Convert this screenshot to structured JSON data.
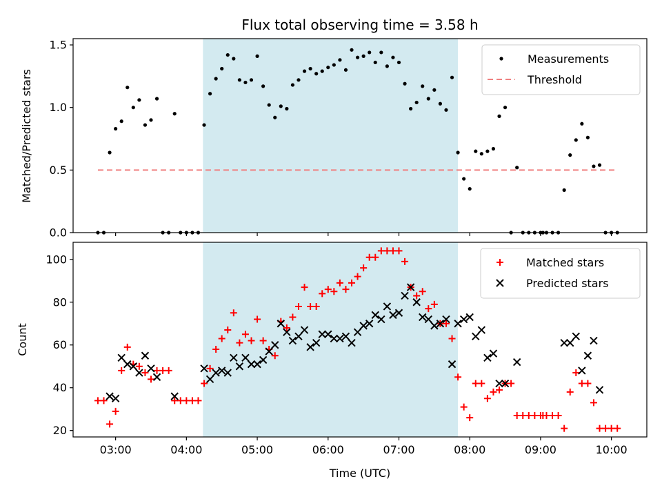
{
  "chart_data": [
    {
      "type": "scatter",
      "title": "Flux total observing time = 3.58 h",
      "xlabel": "",
      "ylabel": "Matched/Predicted stars",
      "ylim": [
        0,
        1.55
      ],
      "yticks": [
        0,
        0.5,
        1.0,
        1.5
      ],
      "ytick_labels": [
        "0.0",
        "0.5",
        "1.0",
        "1.5"
      ],
      "xlim": [
        "02:24",
        "10:30"
      ],
      "highlight_span": {
        "start": "04:14",
        "end": "07:50",
        "color": "#d3eaf0"
      },
      "legend": {
        "position": "top-right"
      },
      "series": [
        {
          "name": "Measurements",
          "kind": "scatter",
          "marker": "dot",
          "color": "#000000",
          "points": [
            [
              "02:45",
              0
            ],
            [
              "02:50",
              0
            ],
            [
              "02:55",
              0.64
            ],
            [
              "03:00",
              0.83
            ],
            [
              "03:05",
              0.89
            ],
            [
              "03:10",
              1.16
            ],
            [
              "03:15",
              1.0
            ],
            [
              "03:20",
              1.06
            ],
            [
              "03:25",
              0.86
            ],
            [
              "03:30",
              0.9
            ],
            [
              "03:35",
              1.07
            ],
            [
              "03:40",
              0
            ],
            [
              "03:45",
              0
            ],
            [
              "03:50",
              0.95
            ],
            [
              "03:55",
              0
            ],
            [
              "04:00",
              0
            ],
            [
              "04:05",
              0
            ],
            [
              "04:10",
              0
            ],
            [
              "04:15",
              0.86
            ],
            [
              "04:20",
              1.11
            ],
            [
              "04:25",
              1.23
            ],
            [
              "04:30",
              1.31
            ],
            [
              "04:35",
              1.42
            ],
            [
              "04:40",
              1.39
            ],
            [
              "04:45",
              1.22
            ],
            [
              "04:50",
              1.2
            ],
            [
              "04:55",
              1.22
            ],
            [
              "05:00",
              1.41
            ],
            [
              "05:05",
              1.17
            ],
            [
              "05:10",
              1.02
            ],
            [
              "05:15",
              0.92
            ],
            [
              "05:20",
              1.01
            ],
            [
              "05:25",
              0.99
            ],
            [
              "05:30",
              1.18
            ],
            [
              "05:35",
              1.22
            ],
            [
              "05:40",
              1.29
            ],
            [
              "05:45",
              1.31
            ],
            [
              "05:50",
              1.27
            ],
            [
              "05:55",
              1.29
            ],
            [
              "06:00",
              1.32
            ],
            [
              "06:05",
              1.34
            ],
            [
              "06:10",
              1.38
            ],
            [
              "06:15",
              1.3
            ],
            [
              "06:20",
              1.46
            ],
            [
              "06:25",
              1.4
            ],
            [
              "06:30",
              1.41
            ],
            [
              "06:35",
              1.44
            ],
            [
              "06:40",
              1.36
            ],
            [
              "06:45",
              1.44
            ],
            [
              "06:50",
              1.33
            ],
            [
              "06:55",
              1.4
            ],
            [
              "07:00",
              1.36
            ],
            [
              "07:05",
              1.19
            ],
            [
              "07:10",
              0.99
            ],
            [
              "07:15",
              1.04
            ],
            [
              "07:20",
              1.17
            ],
            [
              "07:25",
              1.07
            ],
            [
              "07:30",
              1.14
            ],
            [
              "07:35",
              1.03
            ],
            [
              "07:40",
              0.98
            ],
            [
              "07:45",
              1.24
            ],
            [
              "07:50",
              0.64
            ],
            [
              "07:55",
              0.43
            ],
            [
              "08:00",
              0.35
            ],
            [
              "08:05",
              0.65
            ],
            [
              "08:10",
              0.63
            ],
            [
              "08:15",
              0.65
            ],
            [
              "08:20",
              0.67
            ],
            [
              "08:25",
              0.93
            ],
            [
              "08:30",
              1.0
            ],
            [
              "08:35",
              0
            ],
            [
              "08:40",
              0.52
            ],
            [
              "08:45",
              0
            ],
            [
              "08:50",
              0
            ],
            [
              "08:55",
              0
            ],
            [
              "09:00",
              0
            ],
            [
              "09:02",
              0
            ],
            [
              "09:05",
              0
            ],
            [
              "09:10",
              0
            ],
            [
              "09:15",
              0
            ],
            [
              "09:20",
              0.34
            ],
            [
              "09:25",
              0.62
            ],
            [
              "09:30",
              0.74
            ],
            [
              "09:35",
              0.87
            ],
            [
              "09:40",
              0.76
            ],
            [
              "09:45",
              0.53
            ],
            [
              "09:50",
              0.54
            ],
            [
              "09:55",
              0
            ],
            [
              "10:00",
              0
            ],
            [
              "10:05",
              0
            ]
          ]
        },
        {
          "name": "Threshold",
          "kind": "hline",
          "style": "dashed",
          "color": "#f08080",
          "y": 0.5,
          "x_range": [
            "02:45",
            "10:05"
          ]
        }
      ]
    },
    {
      "type": "scatter",
      "title": "",
      "xlabel": "Time (UTC)",
      "ylabel": "Count",
      "ylim": [
        17,
        108
      ],
      "yticks": [
        20,
        40,
        60,
        80,
        100
      ],
      "ytick_labels": [
        "20",
        "40",
        "60",
        "80",
        "100"
      ],
      "xlim": [
        "02:24",
        "10:30"
      ],
      "xticks": [
        "03:00",
        "04:00",
        "05:00",
        "06:00",
        "07:00",
        "08:00",
        "09:00",
        "10:00"
      ],
      "xtick_labels": [
        "03:00",
        "04:00",
        "05:00",
        "06:00",
        "07:00",
        "08:00",
        "09:00",
        "10:00"
      ],
      "highlight_span": {
        "start": "04:14",
        "end": "07:50",
        "color": "#d3eaf0"
      },
      "legend": {
        "position": "top-right"
      },
      "series": [
        {
          "name": "Matched stars",
          "kind": "scatter",
          "marker": "plus",
          "color": "#ff0000",
          "points": [
            [
              "02:45",
              34
            ],
            [
              "02:50",
              34
            ],
            [
              "02:55",
              23
            ],
            [
              "03:00",
              29
            ],
            [
              "03:05",
              48
            ],
            [
              "03:10",
              59
            ],
            [
              "03:15",
              51
            ],
            [
              "03:20",
              50
            ],
            [
              "03:25",
              47
            ],
            [
              "03:30",
              44
            ],
            [
              "03:35",
              48
            ],
            [
              "03:40",
              48
            ],
            [
              "03:45",
              48
            ],
            [
              "03:50",
              34
            ],
            [
              "03:55",
              34
            ],
            [
              "04:00",
              34
            ],
            [
              "04:05",
              34
            ],
            [
              "04:10",
              34
            ],
            [
              "04:15",
              42
            ],
            [
              "04:20",
              49
            ],
            [
              "04:25",
              58
            ],
            [
              "04:30",
              63
            ],
            [
              "04:35",
              67
            ],
            [
              "04:40",
              75
            ],
            [
              "04:45",
              61
            ],
            [
              "04:50",
              65
            ],
            [
              "04:55",
              62
            ],
            [
              "05:00",
              72
            ],
            [
              "05:05",
              62
            ],
            [
              "05:10",
              58
            ],
            [
              "05:15",
              55
            ],
            [
              "05:20",
              71
            ],
            [
              "05:25",
              68
            ],
            [
              "05:30",
              73
            ],
            [
              "05:35",
              78
            ],
            [
              "05:40",
              87
            ],
            [
              "05:45",
              78
            ],
            [
              "05:50",
              78
            ],
            [
              "05:55",
              84
            ],
            [
              "06:00",
              86
            ],
            [
              "06:05",
              85
            ],
            [
              "06:10",
              89
            ],
            [
              "06:15",
              86
            ],
            [
              "06:20",
              89
            ],
            [
              "06:25",
              92
            ],
            [
              "06:30",
              96
            ],
            [
              "06:35",
              101
            ],
            [
              "06:40",
              101
            ],
            [
              "06:45",
              104
            ],
            [
              "06:50",
              104
            ],
            [
              "06:55",
              104
            ],
            [
              "07:00",
              104
            ],
            [
              "07:05",
              99
            ],
            [
              "07:10",
              87
            ],
            [
              "07:15",
              83
            ],
            [
              "07:20",
              85
            ],
            [
              "07:25",
              77
            ],
            [
              "07:30",
              79
            ],
            [
              "07:35",
              70
            ],
            [
              "07:40",
              70
            ],
            [
              "07:45",
              63
            ],
            [
              "07:50",
              45
            ],
            [
              "07:55",
              31
            ],
            [
              "08:00",
              26
            ],
            [
              "08:05",
              42
            ],
            [
              "08:10",
              42
            ],
            [
              "08:15",
              35
            ],
            [
              "08:20",
              38
            ],
            [
              "08:25",
              39
            ],
            [
              "08:30",
              42
            ],
            [
              "08:35",
              42
            ],
            [
              "08:40",
              27
            ],
            [
              "08:45",
              27
            ],
            [
              "08:50",
              27
            ],
            [
              "08:55",
              27
            ],
            [
              "09:00",
              27
            ],
            [
              "09:02",
              27
            ],
            [
              "09:05",
              27
            ],
            [
              "09:10",
              27
            ],
            [
              "09:15",
              27
            ],
            [
              "09:20",
              21
            ],
            [
              "09:25",
              38
            ],
            [
              "09:30",
              47
            ],
            [
              "09:35",
              42
            ],
            [
              "09:40",
              42
            ],
            [
              "09:45",
              33
            ],
            [
              "09:50",
              21
            ],
            [
              "09:55",
              21
            ],
            [
              "10:00",
              21
            ],
            [
              "10:05",
              21
            ]
          ]
        },
        {
          "name": "Predicted stars",
          "kind": "scatter",
          "marker": "x",
          "color": "#000000",
          "points": [
            [
              "02:55",
              36
            ],
            [
              "03:00",
              35
            ],
            [
              "03:05",
              54
            ],
            [
              "03:10",
              51
            ],
            [
              "03:15",
              50
            ],
            [
              "03:20",
              47
            ],
            [
              "03:25",
              55
            ],
            [
              "03:30",
              49
            ],
            [
              "03:35",
              45
            ],
            [
              "03:50",
              36
            ],
            [
              "04:15",
              49
            ],
            [
              "04:20",
              44
            ],
            [
              "04:25",
              47
            ],
            [
              "04:30",
              48
            ],
            [
              "04:35",
              47
            ],
            [
              "04:40",
              54
            ],
            [
              "04:45",
              50
            ],
            [
              "04:50",
              54
            ],
            [
              "04:55",
              51
            ],
            [
              "05:00",
              51
            ],
            [
              "05:05",
              53
            ],
            [
              "05:10",
              57
            ],
            [
              "05:15",
              60
            ],
            [
              "05:20",
              70
            ],
            [
              "05:25",
              66
            ],
            [
              "05:30",
              62
            ],
            [
              "05:35",
              64
            ],
            [
              "05:40",
              67
            ],
            [
              "05:45",
              59
            ],
            [
              "05:50",
              61
            ],
            [
              "05:55",
              65
            ],
            [
              "06:00",
              65
            ],
            [
              "06:05",
              63
            ],
            [
              "06:10",
              63
            ],
            [
              "06:15",
              64
            ],
            [
              "06:20",
              61
            ],
            [
              "06:25",
              66
            ],
            [
              "06:30",
              69
            ],
            [
              "06:35",
              70
            ],
            [
              "06:40",
              74
            ],
            [
              "06:45",
              72
            ],
            [
              "06:50",
              78
            ],
            [
              "06:55",
              74
            ],
            [
              "07:00",
              75
            ],
            [
              "07:05",
              83
            ],
            [
              "07:10",
              87
            ],
            [
              "07:15",
              80
            ],
            [
              "07:20",
              73
            ],
            [
              "07:25",
              72
            ],
            [
              "07:30",
              69
            ],
            [
              "07:35",
              70
            ],
            [
              "07:40",
              72
            ],
            [
              "07:45",
              51
            ],
            [
              "07:50",
              70
            ],
            [
              "07:55",
              72
            ],
            [
              "08:00",
              73
            ],
            [
              "08:05",
              64
            ],
            [
              "08:10",
              67
            ],
            [
              "08:15",
              54
            ],
            [
              "08:20",
              56
            ],
            [
              "08:25",
              42
            ],
            [
              "08:30",
              42
            ],
            [
              "08:40",
              52
            ],
            [
              "09:20",
              61
            ],
            [
              "09:25",
              61
            ],
            [
              "09:30",
              64
            ],
            [
              "09:35",
              48
            ],
            [
              "09:40",
              55
            ],
            [
              "09:45",
              62
            ],
            [
              "09:50",
              39
            ]
          ]
        }
      ]
    }
  ]
}
